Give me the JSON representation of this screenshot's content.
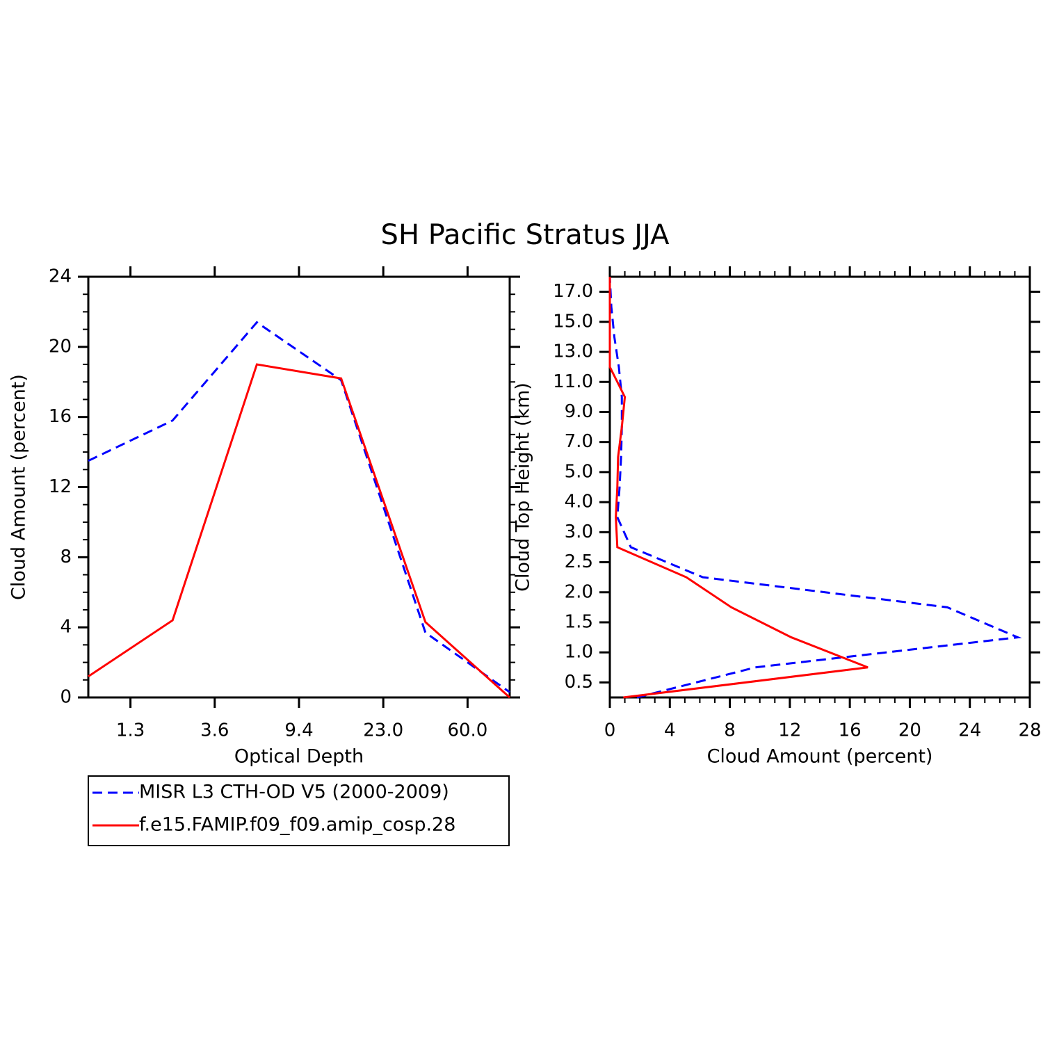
{
  "title": "SH Pacific Stratus JJA",
  "chart_data": [
    {
      "type": "line",
      "xlabel": "Optical Depth",
      "ylabel": "Cloud Amount (percent)",
      "xlim": [
        0,
        5
      ],
      "xticks": [
        {
          "value": 0.5,
          "label": "1.3"
        },
        {
          "value": 1.5,
          "label": "3.6"
        },
        {
          "value": 2.5,
          "label": "9.4"
        },
        {
          "value": 3.5,
          "label": "23.0"
        },
        {
          "value": 4.5,
          "label": "60.0"
        }
      ],
      "ylim": [
        0,
        24
      ],
      "yticks": [
        0,
        4,
        8,
        12,
        16,
        20,
        24
      ],
      "yminor": 1,
      "legend": "below",
      "series": [
        {
          "name": "MISR L3 CTH-OD V5 (2000-2009)",
          "color": "#0000ff",
          "dashed": true,
          "x": [
            0,
            1,
            2,
            3,
            4,
            5
          ],
          "values": [
            13.5,
            15.8,
            21.4,
            18.1,
            3.7,
            0.3
          ]
        },
        {
          "name": "f.e15.FAMIP.f09_f09.amip_cosp.28",
          "color": "#ff0000",
          "dashed": false,
          "x": [
            0,
            1,
            2,
            3,
            4,
            5
          ],
          "values": [
            1.2,
            4.4,
            19.0,
            18.2,
            4.3,
            0.0
          ]
        }
      ]
    },
    {
      "type": "line",
      "orientation": "horizontal",
      "xlabel": "Cloud Amount (percent)",
      "ylabel": "Cloud Top Height (km)",
      "xlim": [
        0,
        28
      ],
      "xticks": [
        0,
        4,
        8,
        12,
        16,
        20,
        24,
        28
      ],
      "xminor": 1,
      "ylim": [
        -0.5,
        13.5
      ],
      "yticks": [
        {
          "value": 0,
          "label": "0.5"
        },
        {
          "value": 1,
          "label": "1.0"
        },
        {
          "value": 2,
          "label": "1.5"
        },
        {
          "value": 3,
          "label": "2.0"
        },
        {
          "value": 4,
          "label": "2.5"
        },
        {
          "value": 5,
          "label": "3.0"
        },
        {
          "value": 6,
          "label": "4.0"
        },
        {
          "value": 7,
          "label": "5.0"
        },
        {
          "value": 8,
          "label": "7.0"
        },
        {
          "value": 9,
          "label": "9.0"
        },
        {
          "value": 10,
          "label": "11.0"
        },
        {
          "value": 11,
          "label": "13.0"
        },
        {
          "value": 12,
          "label": "15.0"
        },
        {
          "value": 13,
          "label": "17.0"
        }
      ],
      "series": [
        {
          "color": "#0000ff",
          "dashed": true,
          "y": [
            -0.5,
            0.5,
            1.5,
            2.5,
            3.5,
            4.5,
            5.5,
            6.5,
            7.5,
            8.5,
            9.5,
            10.5,
            11.5,
            12.5,
            13.5
          ],
          "values": [
            1.8,
            9.7,
            27.2,
            22.5,
            6.2,
            1.4,
            0.5,
            0.65,
            0.75,
            0.8,
            0.8,
            0.6,
            0.3,
            0.1,
            0.0
          ]
        },
        {
          "color": "#ff0000",
          "dashed": false,
          "y": [
            -0.5,
            0.5,
            1.5,
            2.5,
            3.5,
            4.5,
            5.5,
            6.5,
            7.5,
            8.5,
            9.5,
            10.5,
            11.5,
            12.5,
            13.5
          ],
          "values": [
            0.9,
            17.2,
            12.1,
            8.1,
            5.1,
            0.5,
            0.4,
            0.5,
            0.55,
            0.8,
            1.0,
            0.0,
            0.0,
            0.0,
            0.0
          ]
        }
      ]
    }
  ]
}
